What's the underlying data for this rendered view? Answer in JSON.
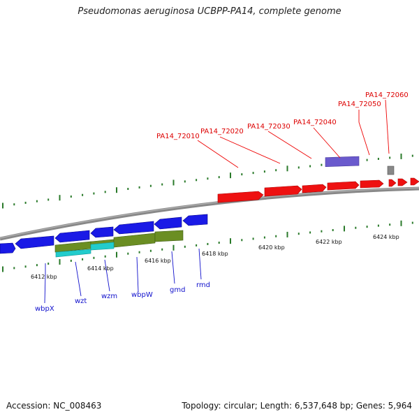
{
  "title": "Pseudomonas aeruginosa UCBPP-PA14, complete genome",
  "footer": {
    "accession": "Accession: NC_008463",
    "topology": "Topology: circular; Length: 6,537,648 bp; Genes: 5,964"
  },
  "colors": {
    "red_genes": "#ee1111",
    "blue_genes": "#1a1ae6",
    "olive_genes": "#6b8e23",
    "cyan_genes": "#22cccc",
    "purple_gene": "#6a5acd",
    "gray_gene": "#888888",
    "ticks": "#2a7a2a",
    "backbone": "#888888",
    "red_label": "#dd0000",
    "blue_label": "#1010cc"
  },
  "ruler_labels": [
    "6412 kbp",
    "6414 kbp",
    "6416 kbp",
    "6418 kbp",
    "6420 kbp",
    "6422 kbp",
    "6424 kbp"
  ],
  "top_labels": [
    "PA14_72010",
    "PA14_72020",
    "PA14_72030",
    "PA14_72040",
    "PA14_72050",
    "PA14_72060"
  ],
  "bottom_labels": [
    "wbpX",
    "wzt",
    "wzm",
    "wbpW",
    "gmd",
    "rmd"
  ]
}
